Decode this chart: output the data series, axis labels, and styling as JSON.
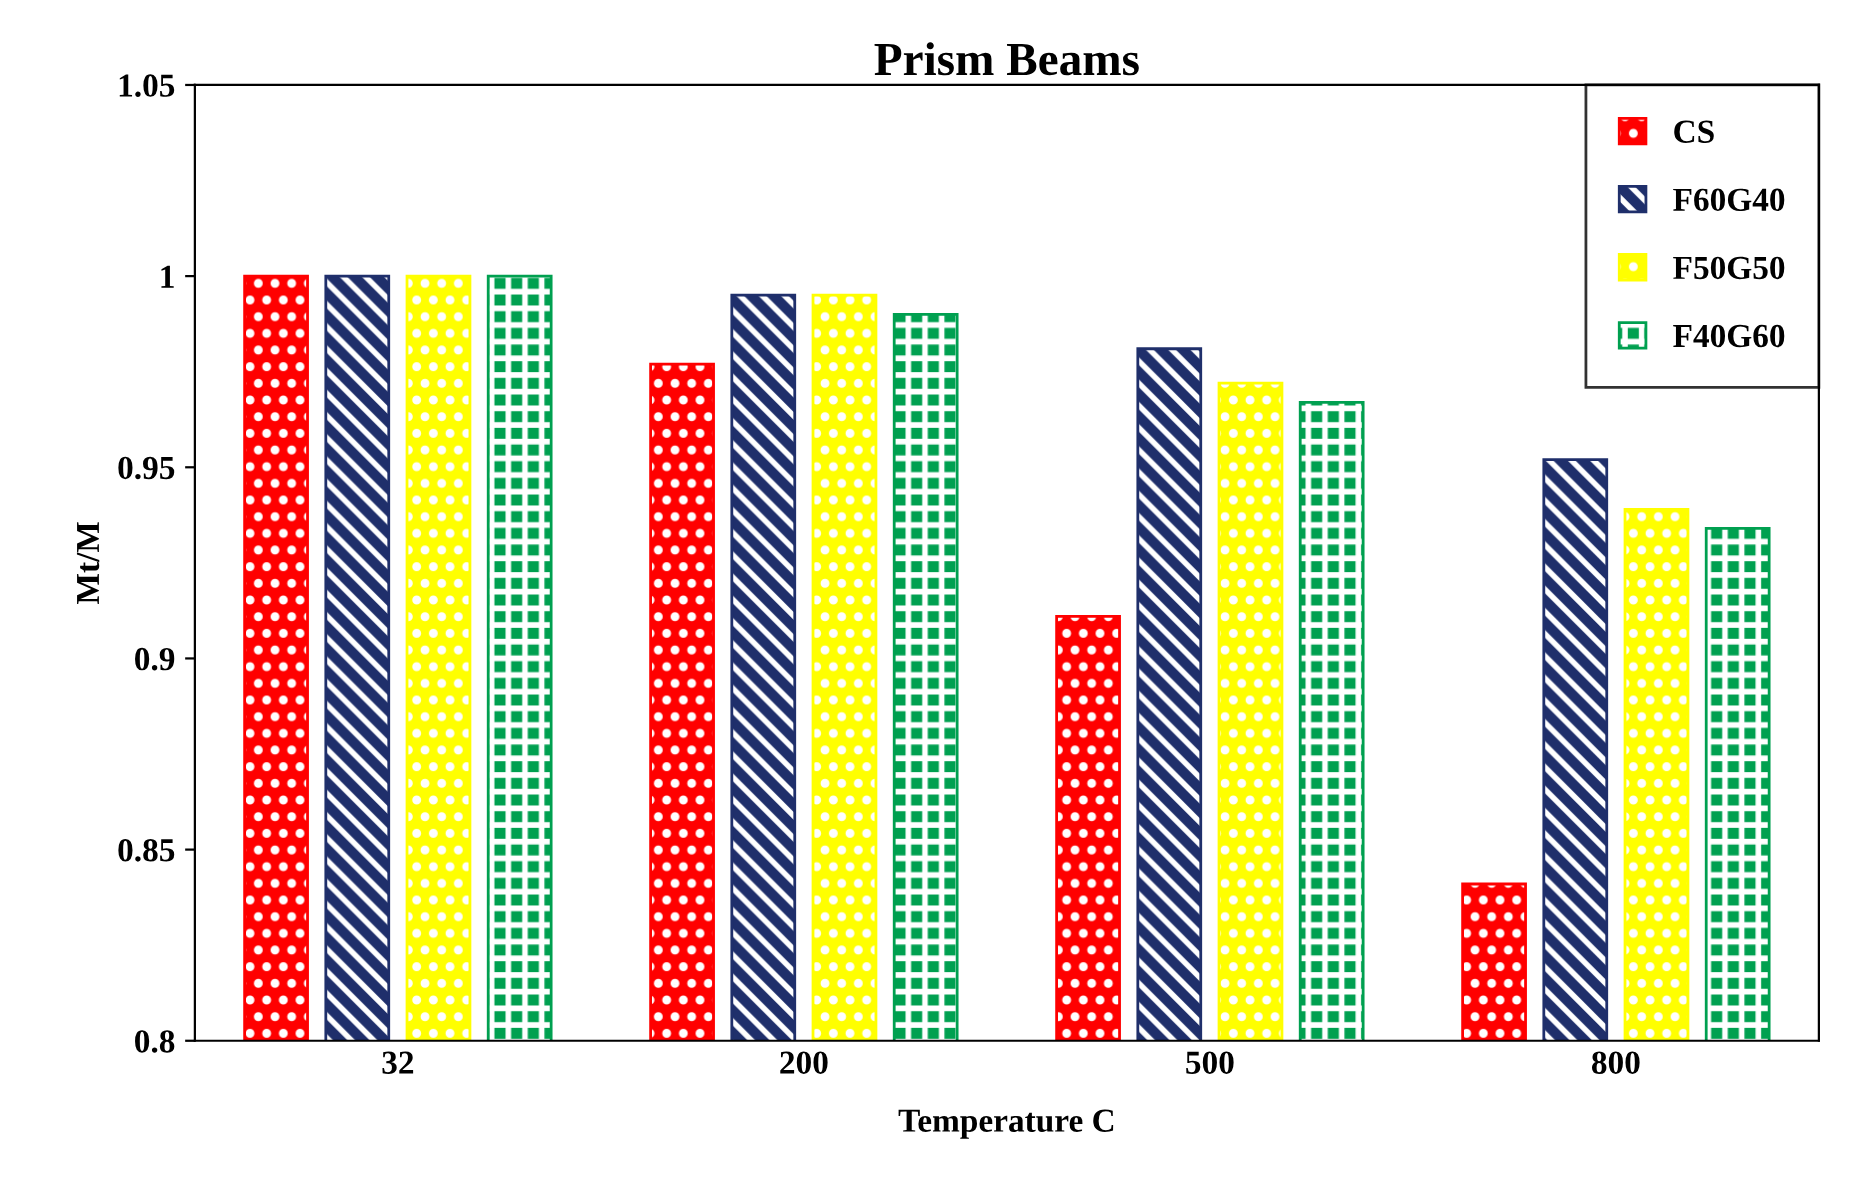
{
  "chart_data": {
    "type": "bar",
    "title": "Prism Beams",
    "xlabel": "Temperature C",
    "ylabel": "Mt/M",
    "categories": [
      "32",
      "200",
      "500",
      "800"
    ],
    "series": [
      {
        "name": "CS",
        "color": "#ff0000",
        "values": [
          1.0,
          0.977,
          0.911,
          0.841
        ]
      },
      {
        "name": "F60G40",
        "color": "#1f2f6b",
        "values": [
          1.0,
          0.995,
          0.981,
          0.952
        ]
      },
      {
        "name": "F50G50",
        "color": "#ffff00",
        "values": [
          1.0,
          0.995,
          0.972,
          0.939
        ]
      },
      {
        "name": "F40G60",
        "color": "#00a050",
        "values": [
          1.0,
          0.99,
          0.967,
          0.934
        ]
      }
    ],
    "ylim": [
      0.8,
      1.05
    ],
    "yticks": [
      0.8,
      0.85,
      0.9,
      0.95,
      1,
      1.05
    ],
    "grid": false,
    "legend": "top right"
  }
}
